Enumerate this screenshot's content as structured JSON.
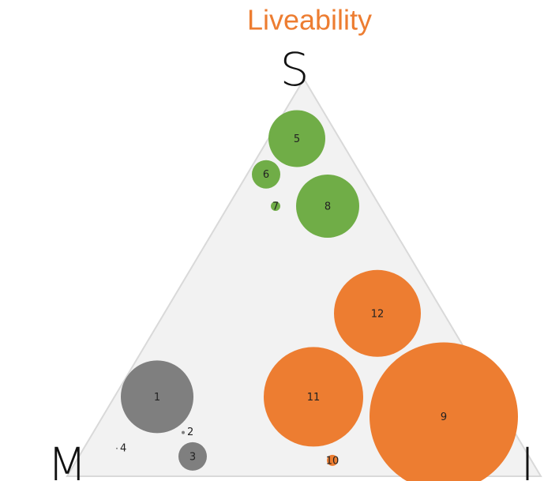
{
  "chart_data": {
    "type": "ternary",
    "title": "Liveability",
    "title_color": "#ed7d31",
    "axes": [
      "S",
      "M",
      "I"
    ],
    "series": [
      {
        "color": "#7f7f7f",
        "labels": [
          "1",
          "2",
          "3",
          "4"
        ],
        "s": [
          20,
          11,
          5,
          7
        ],
        "i": [
          9,
          19,
          24,
          7
        ],
        "m": [
          71,
          70,
          71,
          86
        ],
        "size": [
          46,
          2,
          18,
          1
        ]
      },
      {
        "color": "#70ad47",
        "labels": [
          "5",
          "6",
          "7",
          "8"
        ],
        "s": [
          85,
          76,
          68,
          68
        ],
        "i": [
          6,
          4,
          10,
          21
        ],
        "m": [
          9,
          20,
          22,
          11
        ],
        "size": [
          36,
          18,
          6,
          40
        ]
      },
      {
        "color": "#ed7d31",
        "labels": [
          "9",
          "10",
          "11",
          "12"
        ],
        "s": [
          15,
          4,
          20,
          41
        ],
        "i": [
          72,
          54,
          42,
          45
        ],
        "m": [
          13,
          42,
          38,
          14
        ],
        "size": [
          94,
          7,
          63,
          55
        ]
      }
    ]
  }
}
